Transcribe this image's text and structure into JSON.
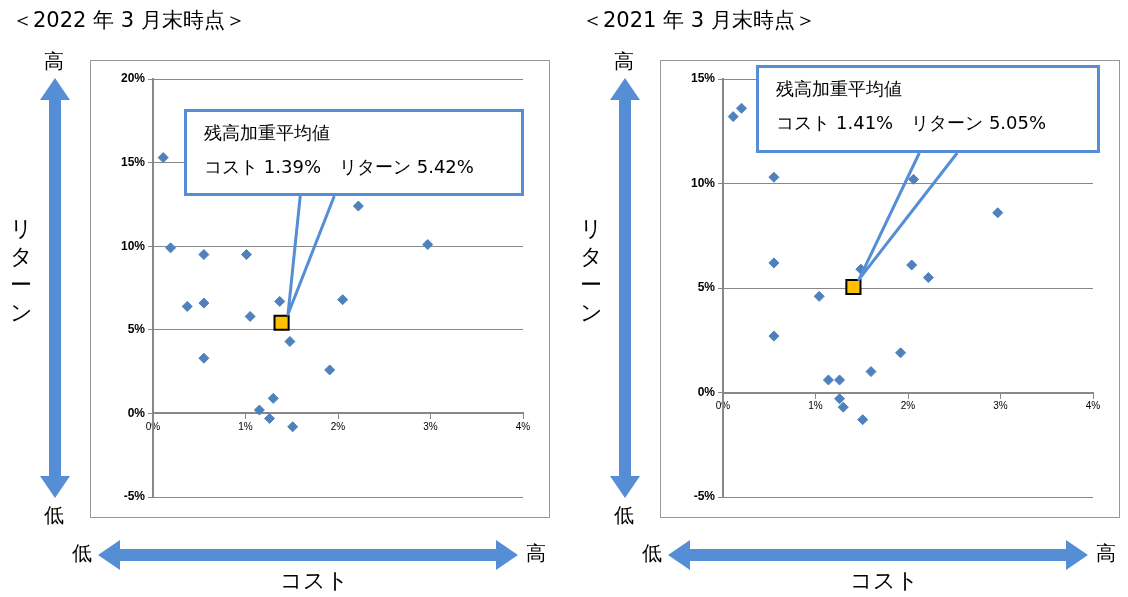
{
  "chart_data": [
    {
      "type": "scatter",
      "title": "＜2022 年 3 月末時点＞",
      "xlabel": "コスト",
      "ylabel": "リターン",
      "xlim": [
        0,
        4
      ],
      "xticks": [
        {
          "value": 0,
          "label": "0%"
        },
        {
          "value": 1,
          "label": "1%"
        },
        {
          "value": 2,
          "label": "2%"
        },
        {
          "value": 3,
          "label": "3%"
        },
        {
          "value": 4,
          "label": "4%"
        }
      ],
      "ylim": [
        -5,
        20
      ],
      "yticks": [
        {
          "value": -5,
          "label": "-5%"
        },
        {
          "value": 0,
          "label": "0%"
        },
        {
          "value": 5,
          "label": "5%"
        },
        {
          "value": 10,
          "label": "10%"
        },
        {
          "value": 15,
          "label": "15%"
        },
        {
          "value": 20,
          "label": "20%"
        }
      ],
      "grid": "y",
      "series": [
        {
          "color": "#4f81bd",
          "marker": "diamond",
          "x": [
            0.11,
            0.19,
            0.37,
            0.55,
            0.55,
            0.55,
            1.01,
            1.05,
            1.37,
            1.48,
            1.3,
            1.15,
            1.26,
            1.51,
            1.91,
            2.05,
            2.22,
            2.97
          ],
          "values": [
            15.3,
            9.9,
            6.4,
            9.5,
            6.6,
            3.3,
            9.5,
            5.8,
            6.7,
            4.3,
            0.9,
            0.2,
            -0.3,
            -0.8,
            2.6,
            6.8,
            12.4,
            10.1
          ]
        },
        {
          "color": "#ffc000",
          "marker": "square",
          "x": [
            1.39
          ],
          "values": [
            5.42
          ]
        }
      ],
      "annotations": [
        "残高加重平均値",
        "コスト 1.39%　リターン 5.42%",
        "高",
        "低",
        "低",
        "高"
      ]
    },
    {
      "type": "scatter",
      "title": "＜2021 年 3 月末時点＞",
      "xlabel": "コスト",
      "ylabel": "リターン",
      "xlim": [
        0,
        4
      ],
      "xticks": [
        {
          "value": 0,
          "label": "0%"
        },
        {
          "value": 1,
          "label": "1%"
        },
        {
          "value": 2,
          "label": "2%"
        },
        {
          "value": 3,
          "label": "3%"
        },
        {
          "value": 4,
          "label": "4%"
        }
      ],
      "ylim": [
        -5,
        15
      ],
      "yticks": [
        {
          "value": -5,
          "label": "-5%"
        },
        {
          "value": 0,
          "label": "0%"
        },
        {
          "value": 5,
          "label": "5%"
        },
        {
          "value": 10,
          "label": "10%"
        },
        {
          "value": 15,
          "label": "15%"
        }
      ],
      "grid": "y",
      "series": [
        {
          "color": "#4f81bd",
          "marker": "diamond",
          "x": [
            0.11,
            0.2,
            0.55,
            0.55,
            0.55,
            1.04,
            1.14,
            1.26,
            1.26,
            1.3,
            1.51,
            1.6,
            1.92,
            2.04,
            2.06,
            2.22,
            2.97,
            1.49
          ],
          "values": [
            13.2,
            13.6,
            10.3,
            6.2,
            2.7,
            4.6,
            0.6,
            0.6,
            -0.3,
            -0.7,
            -1.3,
            1.0,
            1.9,
            6.1,
            10.2,
            5.5,
            8.6,
            5.9
          ]
        },
        {
          "color": "#ffc000",
          "marker": "square",
          "x": [
            1.41
          ],
          "values": [
            5.05
          ]
        }
      ],
      "annotations": [
        "残高加重平均値",
        "コスト 1.41%　リターン 5.05%",
        "高",
        "低",
        "低",
        "高"
      ]
    }
  ]
}
